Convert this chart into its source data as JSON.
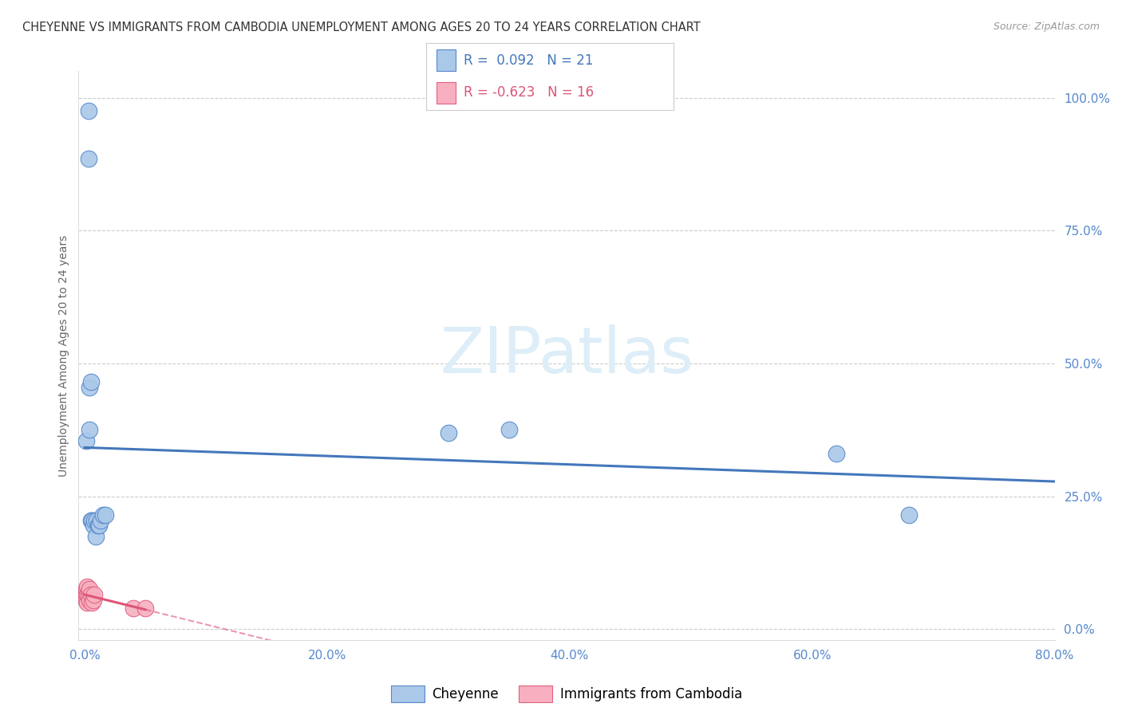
{
  "title": "CHEYENNE VS IMMIGRANTS FROM CAMBODIA UNEMPLOYMENT AMONG AGES 20 TO 24 YEARS CORRELATION CHART",
  "source": "Source: ZipAtlas.com",
  "ylabel": "Unemployment Among Ages 20 to 24 years",
  "watermark": "ZIPatlas",
  "legend_blue_r": " 0.092",
  "legend_blue_n": "21",
  "legend_pink_r": "-0.623",
  "legend_pink_n": "16",
  "cheyenne_x": [
    0.001,
    0.003,
    0.003,
    0.004,
    0.004,
    0.005,
    0.005,
    0.006,
    0.007,
    0.008,
    0.009,
    0.01,
    0.011,
    0.012,
    0.013,
    0.015,
    0.017,
    0.3,
    0.35,
    0.62,
    0.68
  ],
  "cheyenne_y": [
    0.355,
    0.975,
    0.885,
    0.455,
    0.375,
    0.465,
    0.205,
    0.205,
    0.195,
    0.205,
    0.175,
    0.205,
    0.195,
    0.195,
    0.205,
    0.215,
    0.215,
    0.37,
    0.375,
    0.33,
    0.215
  ],
  "cambodia_x": [
    0.001,
    0.001,
    0.001,
    0.002,
    0.002,
    0.002,
    0.003,
    0.003,
    0.004,
    0.004,
    0.005,
    0.006,
    0.007,
    0.008,
    0.04,
    0.05
  ],
  "cambodia_y": [
    0.065,
    0.075,
    0.055,
    0.08,
    0.065,
    0.05,
    0.07,
    0.06,
    0.055,
    0.075,
    0.065,
    0.05,
    0.055,
    0.065,
    0.04,
    0.04
  ],
  "xlim": [
    -0.005,
    0.8
  ],
  "ylim": [
    -0.02,
    1.05
  ],
  "yticks": [
    0.0,
    0.25,
    0.5,
    0.75,
    1.0
  ],
  "xticks": [
    0.0,
    0.2,
    0.4,
    0.6,
    0.8
  ],
  "blue_color": "#aac8e8",
  "blue_edge_color": "#5588cc",
  "pink_color": "#f8b0c0",
  "pink_edge_color": "#e06080",
  "blue_line_color": "#4477bb",
  "pink_line_color": "#dd5577",
  "grid_color": "#cccccc",
  "bg_color": "#ffffff",
  "title_color": "#333333",
  "tick_color_right": "#5588cc",
  "tick_color_bottom": "#5588cc"
}
